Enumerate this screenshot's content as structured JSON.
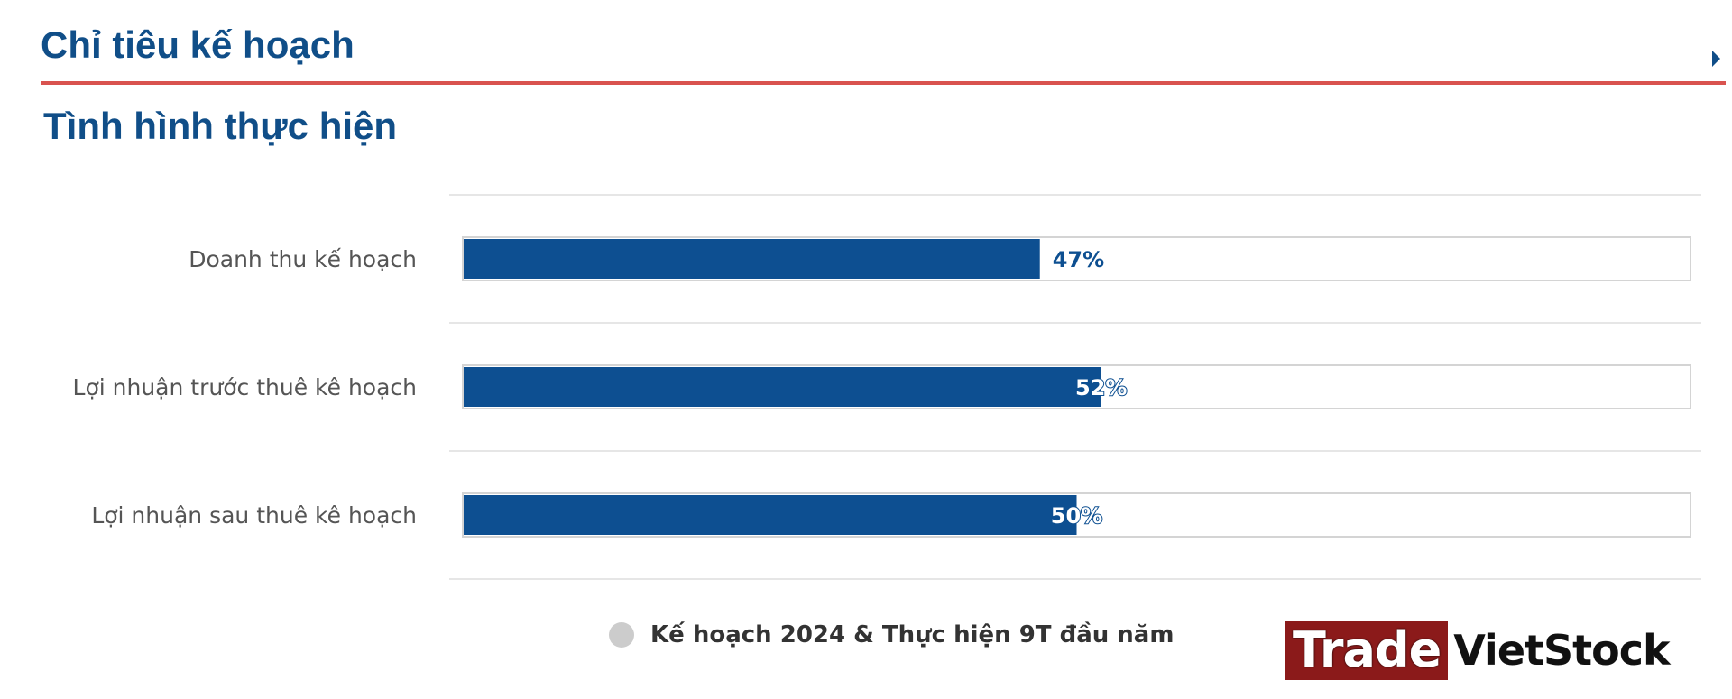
{
  "header": {
    "section_title": "Chỉ tiêu kế hoạch",
    "subtitle": "Tình hình thực hiện"
  },
  "chart_data": {
    "type": "bar",
    "orientation": "horizontal",
    "categories": [
      "Doanh thu kế hoạch",
      "Lợi nhuận trước thuê kê hoạch",
      "Lợi nhuận sau thuê kê hoạch"
    ],
    "values": [
      47,
      52,
      50
    ],
    "value_labels": [
      "47%",
      "52%",
      "50%"
    ],
    "xlim": [
      0,
      100
    ],
    "unit": "%",
    "legend": [
      "Kế hoạch 2024 & Thực hiện 9T đầu năm"
    ],
    "legend_position": "bottom",
    "grid": true
  },
  "legend": {
    "label": "Kế hoạch 2024 & Thực hiện 9T đầu năm"
  },
  "watermark": {
    "part1": "Trade",
    "part2": "VietStock"
  },
  "colors": {
    "bar": "#0d4f91",
    "track_border": "#d4d4d4",
    "grid": "#e6e6e6",
    "title": "#104e88",
    "rule": "#d9534f",
    "legend_dot": "#cccccc"
  }
}
